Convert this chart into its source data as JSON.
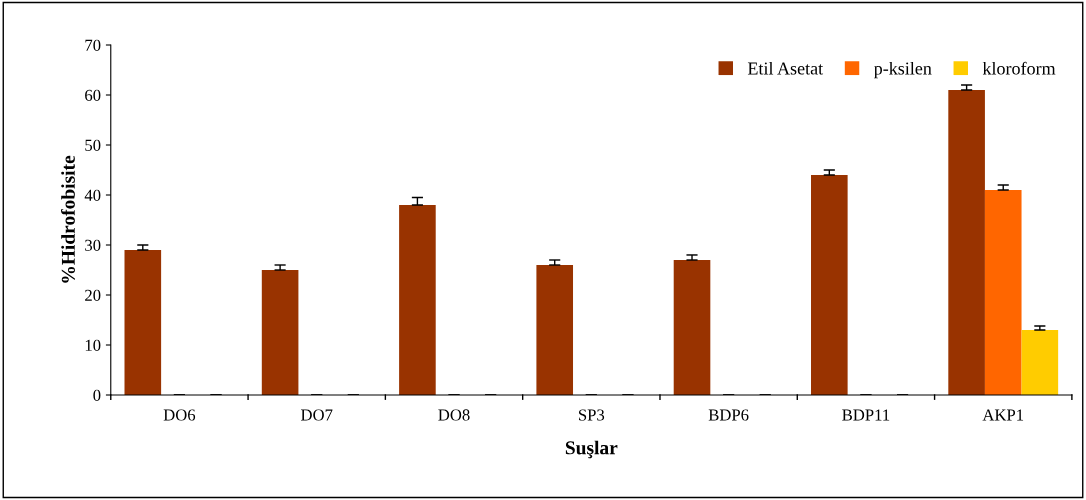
{
  "chart_data": {
    "type": "bar",
    "xlabel": "Suşlar",
    "ylabel": "%Hidrofobisite",
    "categories": [
      "DO6",
      "DO7",
      "DO8",
      "SP3",
      "BDP6",
      "BDP11",
      "AKP1"
    ],
    "series": [
      {
        "name": "Etil Asetat",
        "color": "#993300",
        "values": [
          29,
          25,
          38,
          26,
          27,
          44,
          61
        ],
        "errors": [
          1,
          1,
          1.5,
          1,
          1,
          1,
          1
        ]
      },
      {
        "name": "p-ksilen",
        "color": "#ff6600",
        "values": [
          0,
          0,
          0,
          0,
          0,
          0,
          41
        ],
        "errors": [
          0,
          0,
          0,
          0,
          0,
          0,
          1
        ]
      },
      {
        "name": "kloroform",
        "color": "#ffcc00",
        "values": [
          0,
          0,
          0,
          0,
          0,
          0,
          13
        ],
        "errors": [
          0,
          0,
          0,
          0,
          0,
          0,
          0.8
        ]
      }
    ],
    "ylim": [
      0,
      70
    ],
    "yticks": [
      0,
      10,
      20,
      30,
      40,
      50,
      60,
      70
    ],
    "grid": false,
    "legend": "top right"
  }
}
